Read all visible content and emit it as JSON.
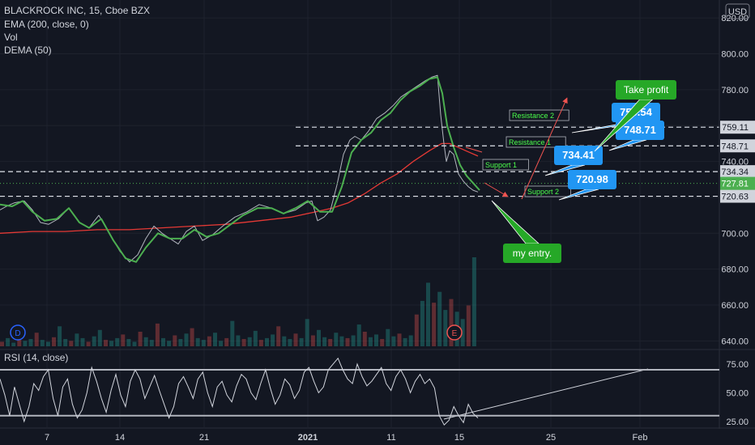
{
  "header": {
    "symbol_line": "BLACKROCK INC, 15, Cboe BZX",
    "indicators": [
      "EMA (200, close, 0)",
      "Vol",
      "DEMA (50)"
    ],
    "currency": "USD"
  },
  "rsi_label": "RSI (14, close)",
  "colors": {
    "background": "#131722",
    "price_line": "#b2b5be",
    "dema": "#4caf50",
    "ema": "#e53935",
    "callout_blue": "#2196f3",
    "callout_green": "#26a827",
    "current_price_tag": "#4caf50"
  },
  "chart_data": [
    {
      "type": "line",
      "title": "BLACKROCK INC, 15, Cboe BZX",
      "x_ticks": [
        "7",
        "14",
        "21",
        "2021",
        "11",
        "15",
        "25",
        "Feb"
      ],
      "y_ticks": [
        "820.00",
        "800.00",
        "780.00",
        "760.00",
        "740.00",
        "720.00",
        "700.00",
        "680.00",
        "660.00",
        "640.00"
      ],
      "ylim": [
        637,
        830
      ],
      "series": [
        {
          "name": "",
          "x": [
            0,
            8,
            18,
            30,
            40,
            50,
            60,
            72,
            85,
            98,
            110,
            122,
            135,
            148,
            160,
            170,
            180,
            190,
            200,
            210,
            220,
            230,
            240,
            250,
            262,
            275,
            290,
            305,
            320,
            335,
            350,
            365,
            378,
            385,
            392,
            400,
            408,
            416,
            424,
            432,
            438,
            446,
            455,
            465,
            475,
            485,
            495,
            505,
            515,
            525,
            533,
            540,
            544,
            548,
            551,
            555,
            560,
            566,
            572,
            578,
            584,
            590
          ],
          "values": [
            713,
            715,
            717,
            718,
            713,
            706,
            705,
            708,
            714,
            706,
            703,
            710,
            700,
            690,
            684,
            688,
            697,
            704,
            700,
            697,
            694,
            701,
            704,
            696,
            699,
            704,
            709,
            712,
            716,
            714,
            711,
            713,
            717,
            718,
            707,
            709,
            713,
            727,
            744,
            752,
            754,
            752,
            757,
            764,
            767,
            771,
            776,
            779,
            782,
            785,
            787,
            788,
            766,
            750,
            740,
            746,
            744,
            733,
            729,
            726,
            724,
            723
          ]
        },
        {
          "name": "",
          "x": [
            0,
            15,
            28,
            40,
            55,
            70,
            85,
            98,
            110,
            125,
            140,
            155,
            168,
            180,
            195,
            210,
            225,
            240,
            255,
            270,
            285,
            300,
            318,
            335,
            350,
            365,
            380,
            395,
            410,
            422,
            434,
            446,
            458,
            470,
            482,
            494,
            506,
            518,
            530,
            540,
            546,
            552,
            560,
            568,
            576,
            584,
            592
          ],
          "values": [
            716,
            715,
            718,
            712,
            707,
            708,
            714,
            706,
            703,
            708,
            696,
            686,
            684,
            692,
            700,
            697,
            697,
            702,
            698,
            700,
            705,
            710,
            714,
            714,
            711,
            714,
            718,
            712,
            712,
            726,
            745,
            752,
            756,
            763,
            767,
            774,
            779,
            782,
            786,
            787,
            778,
            760,
            748,
            738,
            732,
            728,
            724
          ]
        },
        {
          "name": "",
          "x": [
            0,
            40,
            80,
            120,
            160,
            200,
            240,
            280,
            320,
            360,
            390,
            410,
            430,
            450,
            470,
            490,
            510,
            530,
            545,
            555,
            565,
            575,
            590
          ],
          "values": [
            700,
            701,
            701,
            702,
            702,
            703,
            704,
            705,
            707,
            709,
            712,
            714,
            717,
            722,
            728,
            733,
            740,
            746,
            750,
            750,
            748,
            746,
            743
          ]
        }
      ],
      "horizontal_levels": [
        {
          "label": "Resistance 2",
          "value": 759.11,
          "price_tag": "759.11"
        },
        {
          "label": "Resistance 1",
          "value": 748.71,
          "price_tag": "748.71"
        },
        {
          "label": "Support 1",
          "value": 734.34,
          "price_tag": "734.34"
        },
        {
          "label": "Support 2",
          "value": 720.63,
          "price_tag": "720.63"
        }
      ],
      "current_price": {
        "value": 727.81,
        "label": "727.81"
      },
      "callouts": [
        {
          "text": "759.54",
          "color": "blue"
        },
        {
          "text": "748.71",
          "color": "blue"
        },
        {
          "text": "734.41",
          "color": "blue"
        },
        {
          "text": "720.98",
          "color": "blue"
        },
        {
          "text": "Take profit",
          "color": "green"
        },
        {
          "text": "my entry.",
          "color": "green"
        }
      ],
      "event_markers": [
        "D",
        "E"
      ],
      "volume": {
        "values": [
          5,
          9,
          4,
          12,
          6,
          8,
          15,
          7,
          5,
          10,
          22,
          8,
          6,
          14,
          9,
          5,
          11,
          18,
          7,
          6,
          9,
          13,
          8,
          5,
          16,
          10,
          7,
          25,
          9,
          6,
          12,
          8,
          14,
          20,
          9,
          7,
          11,
          15,
          6,
          9,
          28,
          12,
          8,
          10,
          17,
          7,
          9,
          13,
          22,
          11,
          8,
          14,
          9,
          30,
          12,
          18,
          10,
          8,
          15,
          11,
          9,
          12,
          24,
          16,
          10,
          13,
          8,
          19,
          11,
          14,
          9,
          12,
          35,
          50,
          70,
          48,
          60,
          40,
          52,
          38,
          30,
          45,
          98
        ]
      }
    },
    {
      "type": "line",
      "title": "RSI (14, close)",
      "y_ticks": [
        "75.00",
        "50.00",
        "25.00"
      ],
      "ylim": [
        20,
        82
      ],
      "bands": [
        70,
        30
      ],
      "series": [
        {
          "name": "",
          "values": [
            62,
            48,
            30,
            55,
            40,
            25,
            38,
            58,
            52,
            64,
            70,
            45,
            30,
            55,
            62,
            40,
            28,
            35,
            50,
            72,
            60,
            45,
            33,
            52,
            66,
            48,
            38,
            60,
            70,
            62,
            45,
            55,
            65,
            52,
            40,
            28,
            38,
            58,
            64,
            55,
            45,
            62,
            68,
            50,
            38,
            55,
            60,
            48,
            42,
            56,
            66,
            62,
            50,
            44,
            58,
            70,
            54,
            40,
            48,
            62,
            57,
            45,
            52,
            68,
            72,
            60,
            50,
            55,
            70,
            75,
            80,
            70,
            62,
            58,
            75,
            64,
            56,
            60,
            66,
            72,
            58,
            52,
            64,
            70,
            62,
            50,
            60,
            66,
            58,
            62,
            54,
            30,
            22,
            26,
            38,
            30,
            24,
            40,
            32,
            28
          ]
        }
      ]
    }
  ]
}
